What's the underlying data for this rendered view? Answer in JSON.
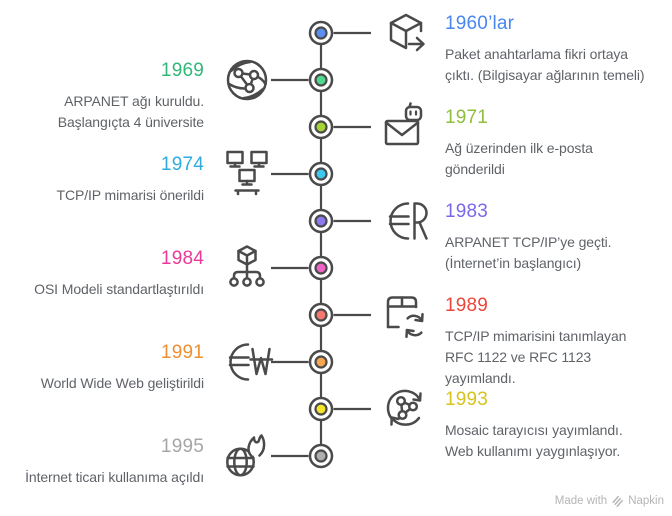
{
  "colors": {
    "background": "#FFFFFF",
    "line": "#4A4A4A",
    "description_text": "#5F6368",
    "footer_text": "#B5B5B5"
  },
  "timeline": {
    "items": [
      {
        "year": "1960’lar",
        "side": "right",
        "accent": "#4987EE",
        "node_color": "#5C8FF0",
        "icon": "package-arrow-icon",
        "description": "Paket anahtarlama fikri ortaya\nçıktı. (Bilgisayar ağlarının temeli)"
      },
      {
        "year": "1969",
        "side": "left",
        "accent": "#30B878",
        "node_color": "#50D88C",
        "icon": "network-globe-icon",
        "description": "ARPANET ağı kuruldu.\nBaşlangıçta 4 üniversite"
      },
      {
        "year": "1971",
        "side": "right",
        "accent": "#8FBE3F",
        "node_color": "#A6D436",
        "icon": "email-robot-icon",
        "description": "Ağ üzerinden ilk e-posta\ngönderildi"
      },
      {
        "year": "1974",
        "side": "left",
        "accent": "#2FABE1",
        "node_color": "#3FC8EF",
        "icon": "network-computers-icon",
        "description": "TCP/IP mimarisi önerildi"
      },
      {
        "year": "1983",
        "side": "right",
        "accent": "#7A68EA",
        "node_color": "#8D79F0",
        "icon": "globe-r-icon",
        "description": "ARPANET TCP/IP’ye geçti.\n(İnternet’in başlangıcı)"
      },
      {
        "year": "1984",
        "side": "left",
        "accent": "#E93A9A",
        "node_color": "#EF64C7",
        "icon": "cube-hierarchy-icon",
        "description": "OSI Modeli standartlaştırıldı"
      },
      {
        "year": "1989",
        "side": "right",
        "accent": "#ED4639",
        "node_color": "#F5776D",
        "icon": "package-sync-icon",
        "description": "TCP/IP mimarisini tanımlayan\nRFC 1122 ve RFC 1123\nyayımlandı."
      },
      {
        "year": "1991",
        "side": "left",
        "accent": "#EB9034",
        "node_color": "#F6A550",
        "icon": "globe-w-icon",
        "description": "World Wide Web geliştirildi"
      },
      {
        "year": "1993",
        "side": "right",
        "accent": "#D6C31D",
        "node_color": "#F6E42D",
        "icon": "share-sync-icon",
        "description": "Mosaic tarayıcısı yayımlandı.\nWeb kullanımı yaygınlaşıyor."
      },
      {
        "year": "1995",
        "side": "left",
        "accent": "#A5A5A5",
        "node_color": "#AEAEAE",
        "icon": "globe-flame-icon",
        "description": "İnternet ticari kullanıma açıldı"
      }
    ]
  },
  "footer": {
    "made_with": "Made with",
    "brand": "Napkin",
    "logo_icon": "napkin-logo-icon"
  }
}
